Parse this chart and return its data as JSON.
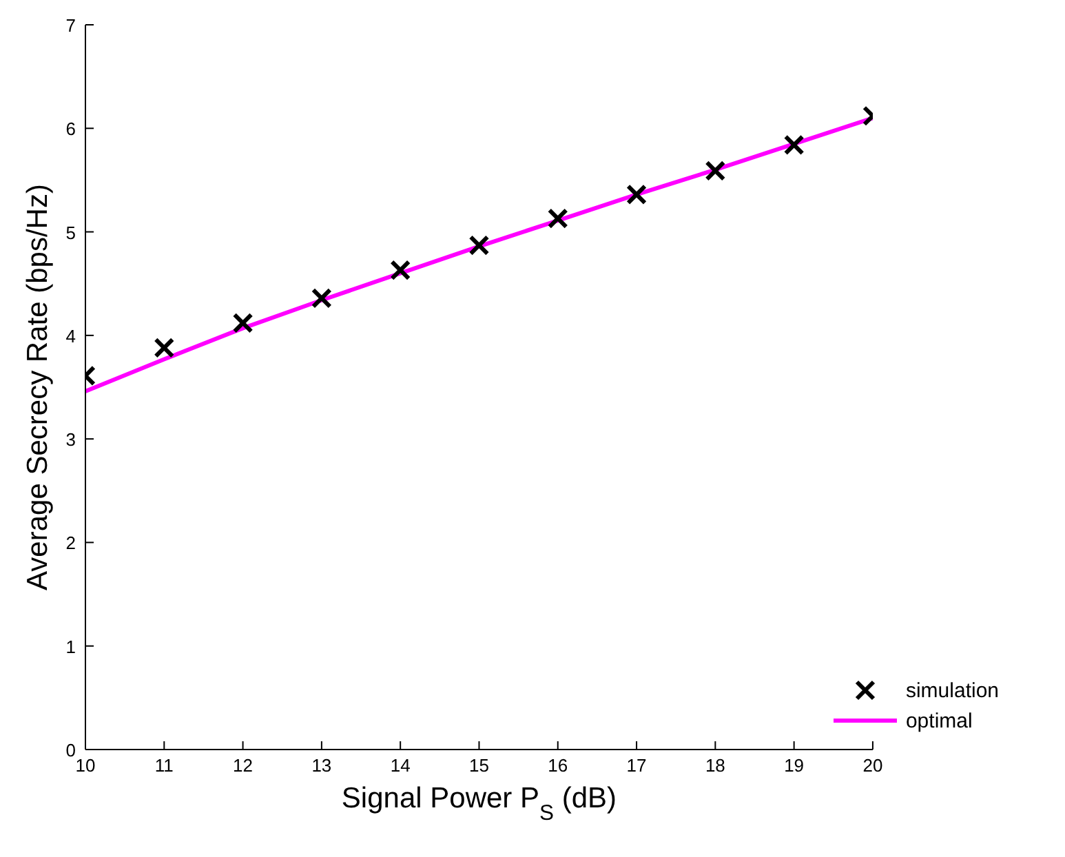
{
  "chart_data": {
    "type": "line",
    "xlabel": "Signal Power P$_{S}$ (dB)",
    "ylabel": "Average Secrecy Rate (bps/Hz)",
    "x": [
      10,
      11,
      12,
      13,
      14,
      15,
      16,
      17,
      18,
      19,
      20
    ],
    "series": [
      {
        "name": "simulation",
        "type": "scatter",
        "marker": "cross",
        "color": "#000000",
        "values": [
          3.61,
          3.88,
          4.12,
          4.36,
          4.63,
          4.87,
          5.13,
          5.36,
          5.59,
          5.84,
          6.12
        ]
      },
      {
        "name": "optimal",
        "marker": "none",
        "color": "#ff00ff",
        "values": [
          3.46,
          3.77,
          4.07,
          4.34,
          4.6,
          4.86,
          5.11,
          5.36,
          5.6,
          5.85,
          6.1
        ]
      }
    ],
    "xlim": [
      10,
      20
    ],
    "xticks": [
      10,
      11,
      12,
      13,
      14,
      15,
      16,
      17,
      18,
      19,
      20
    ],
    "ylim": [
      0,
      7
    ],
    "yticks": [
      0,
      1,
      2,
      3,
      4,
      5,
      6,
      7
    ],
    "grid": false,
    "legend": "bottom right"
  }
}
